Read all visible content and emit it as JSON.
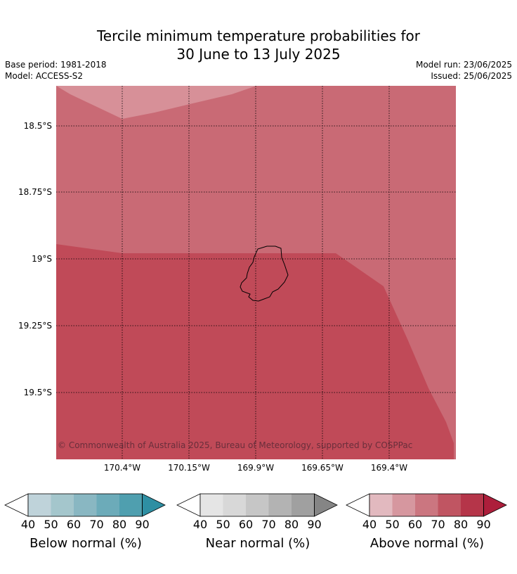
{
  "title_line1": "Tercile minimum temperature probabilities for",
  "title_line2": "30 June to 13 July 2025",
  "meta": {
    "base_period": "Base period: 1981-2018",
    "model": "Model: ACCESS-S2",
    "model_run": "Model run: 23/06/2025",
    "issued": "Issued: 25/06/2025"
  },
  "map": {
    "lat_labels": [
      "18.5°S",
      "18.75°S",
      "19°S",
      "19.25°S",
      "19.5°S"
    ],
    "lon_labels": [
      "170.4°W",
      "170.15°W",
      "169.9°W",
      "169.65°W",
      "169.4°W"
    ],
    "copyright": "© Commonwealth of Australia 2025, Bureau of Meteorology, supported by COSPPac",
    "colors": {
      "above_50": "#d79098",
      "above_60": "#c96a75",
      "above_70": "#c04a58",
      "coastline": "#000000"
    }
  },
  "legends": [
    {
      "title": "Below normal (%)",
      "ticks": [
        "40",
        "50",
        "60",
        "70",
        "80",
        "90"
      ],
      "colors": [
        "#ffffff",
        "#bfd3da",
        "#a4c6cc",
        "#89b7c2",
        "#6cabb9",
        "#4f9faf",
        "#2e8fa3"
      ]
    },
    {
      "title": "Near normal (%)",
      "ticks": [
        "40",
        "50",
        "60",
        "70",
        "80",
        "90"
      ],
      "colors": [
        "#ffffff",
        "#e5e5e5",
        "#d8d8d8",
        "#c6c6c6",
        "#b3b3b3",
        "#a0a0a0",
        "#858585"
      ]
    },
    {
      "title": "Above normal (%)",
      "ticks": [
        "40",
        "50",
        "60",
        "70",
        "80",
        "90"
      ],
      "colors": [
        "#ffffff",
        "#e2b9bf",
        "#d6979f",
        "#cb7680",
        "#c05562",
        "#b53549",
        "#ad1e3b"
      ]
    }
  ]
}
